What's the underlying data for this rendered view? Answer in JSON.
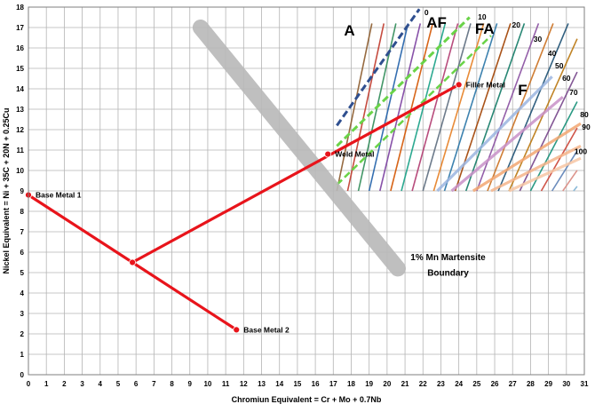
{
  "chart_data": {
    "type": "scatter",
    "title": "",
    "xlabel": "Chromiun Equivalent = Cr + Mo + 0.7Nb",
    "ylabel": "Nickel Equivalent = Ni + 35C + 20N + 0.25Cu",
    "xlim": [
      0,
      31
    ],
    "ylim": [
      0,
      18
    ],
    "xticks": [
      0,
      1,
      2,
      3,
      4,
      5,
      6,
      7,
      8,
      9,
      10,
      11,
      12,
      13,
      14,
      15,
      16,
      17,
      18,
      19,
      20,
      21,
      22,
      23,
      24,
      25,
      26,
      27,
      28,
      29,
      30,
      31
    ],
    "yticks": [
      0,
      1,
      2,
      3,
      4,
      5,
      6,
      7,
      8,
      9,
      10,
      11,
      12,
      13,
      14,
      15,
      16,
      17,
      18
    ],
    "grid": true,
    "region_labels": [
      {
        "text": "A",
        "x": 17.6,
        "y": 16.6
      },
      {
        "text": "AF",
        "x": 22.2,
        "y": 17.0
      },
      {
        "text": "FA",
        "x": 24.9,
        "y": 16.7
      },
      {
        "text": "F",
        "x": 27.3,
        "y": 13.7
      }
    ],
    "ferrite_numbers": [
      {
        "text": "0",
        "x": 22.2,
        "y": 17.6
      },
      {
        "text": "10",
        "x": 25.3,
        "y": 17.4
      },
      {
        "text": "20",
        "x": 27.2,
        "y": 17.0
      },
      {
        "text": "30",
        "x": 28.4,
        "y": 16.3
      },
      {
        "text": "40",
        "x": 29.2,
        "y": 15.6
      },
      {
        "text": "50",
        "x": 29.6,
        "y": 15.0
      },
      {
        "text": "60",
        "x": 30.0,
        "y": 14.4
      },
      {
        "text": "70",
        "x": 30.4,
        "y": 13.7
      },
      {
        "text": "80",
        "x": 31.0,
        "y": 12.6
      },
      {
        "text": "90",
        "x": 31.3,
        "y": 12.0
      },
      {
        "text": "100",
        "x": 30.8,
        "y": 10.8
      }
    ],
    "points": [
      {
        "name": "Base Metal 1",
        "x": 0.0,
        "y": 8.8
      },
      {
        "name": "Base Metal 2",
        "x": 11.6,
        "y": 2.2
      },
      {
        "name": "",
        "x": 5.8,
        "y": 5.5
      },
      {
        "name": "Weld Metal",
        "x": 16.7,
        "y": 10.8
      },
      {
        "name": "Filler Metal",
        "x": 24.0,
        "y": 14.2
      }
    ],
    "tie_lines": [
      {
        "from": [
          0.0,
          8.8
        ],
        "to": [
          11.6,
          2.2
        ]
      },
      {
        "from": [
          5.8,
          5.5
        ],
        "to": [
          24.0,
          14.2
        ]
      }
    ],
    "boundary": {
      "label_line1": "1% Mn Martensite",
      "label_line2": "Boundary",
      "from": [
        9.6,
        17.0
      ],
      "to": [
        20.6,
        5.2
      ]
    },
    "colors": {
      "tie_line": "#e8141b",
      "boundary_band": "#b8b8b8",
      "dashed_zero": "#2f4f8f",
      "dashed_ten": "#6ad348",
      "grid": "#b4b4b4",
      "plot_border": "#7f7f7f"
    }
  }
}
